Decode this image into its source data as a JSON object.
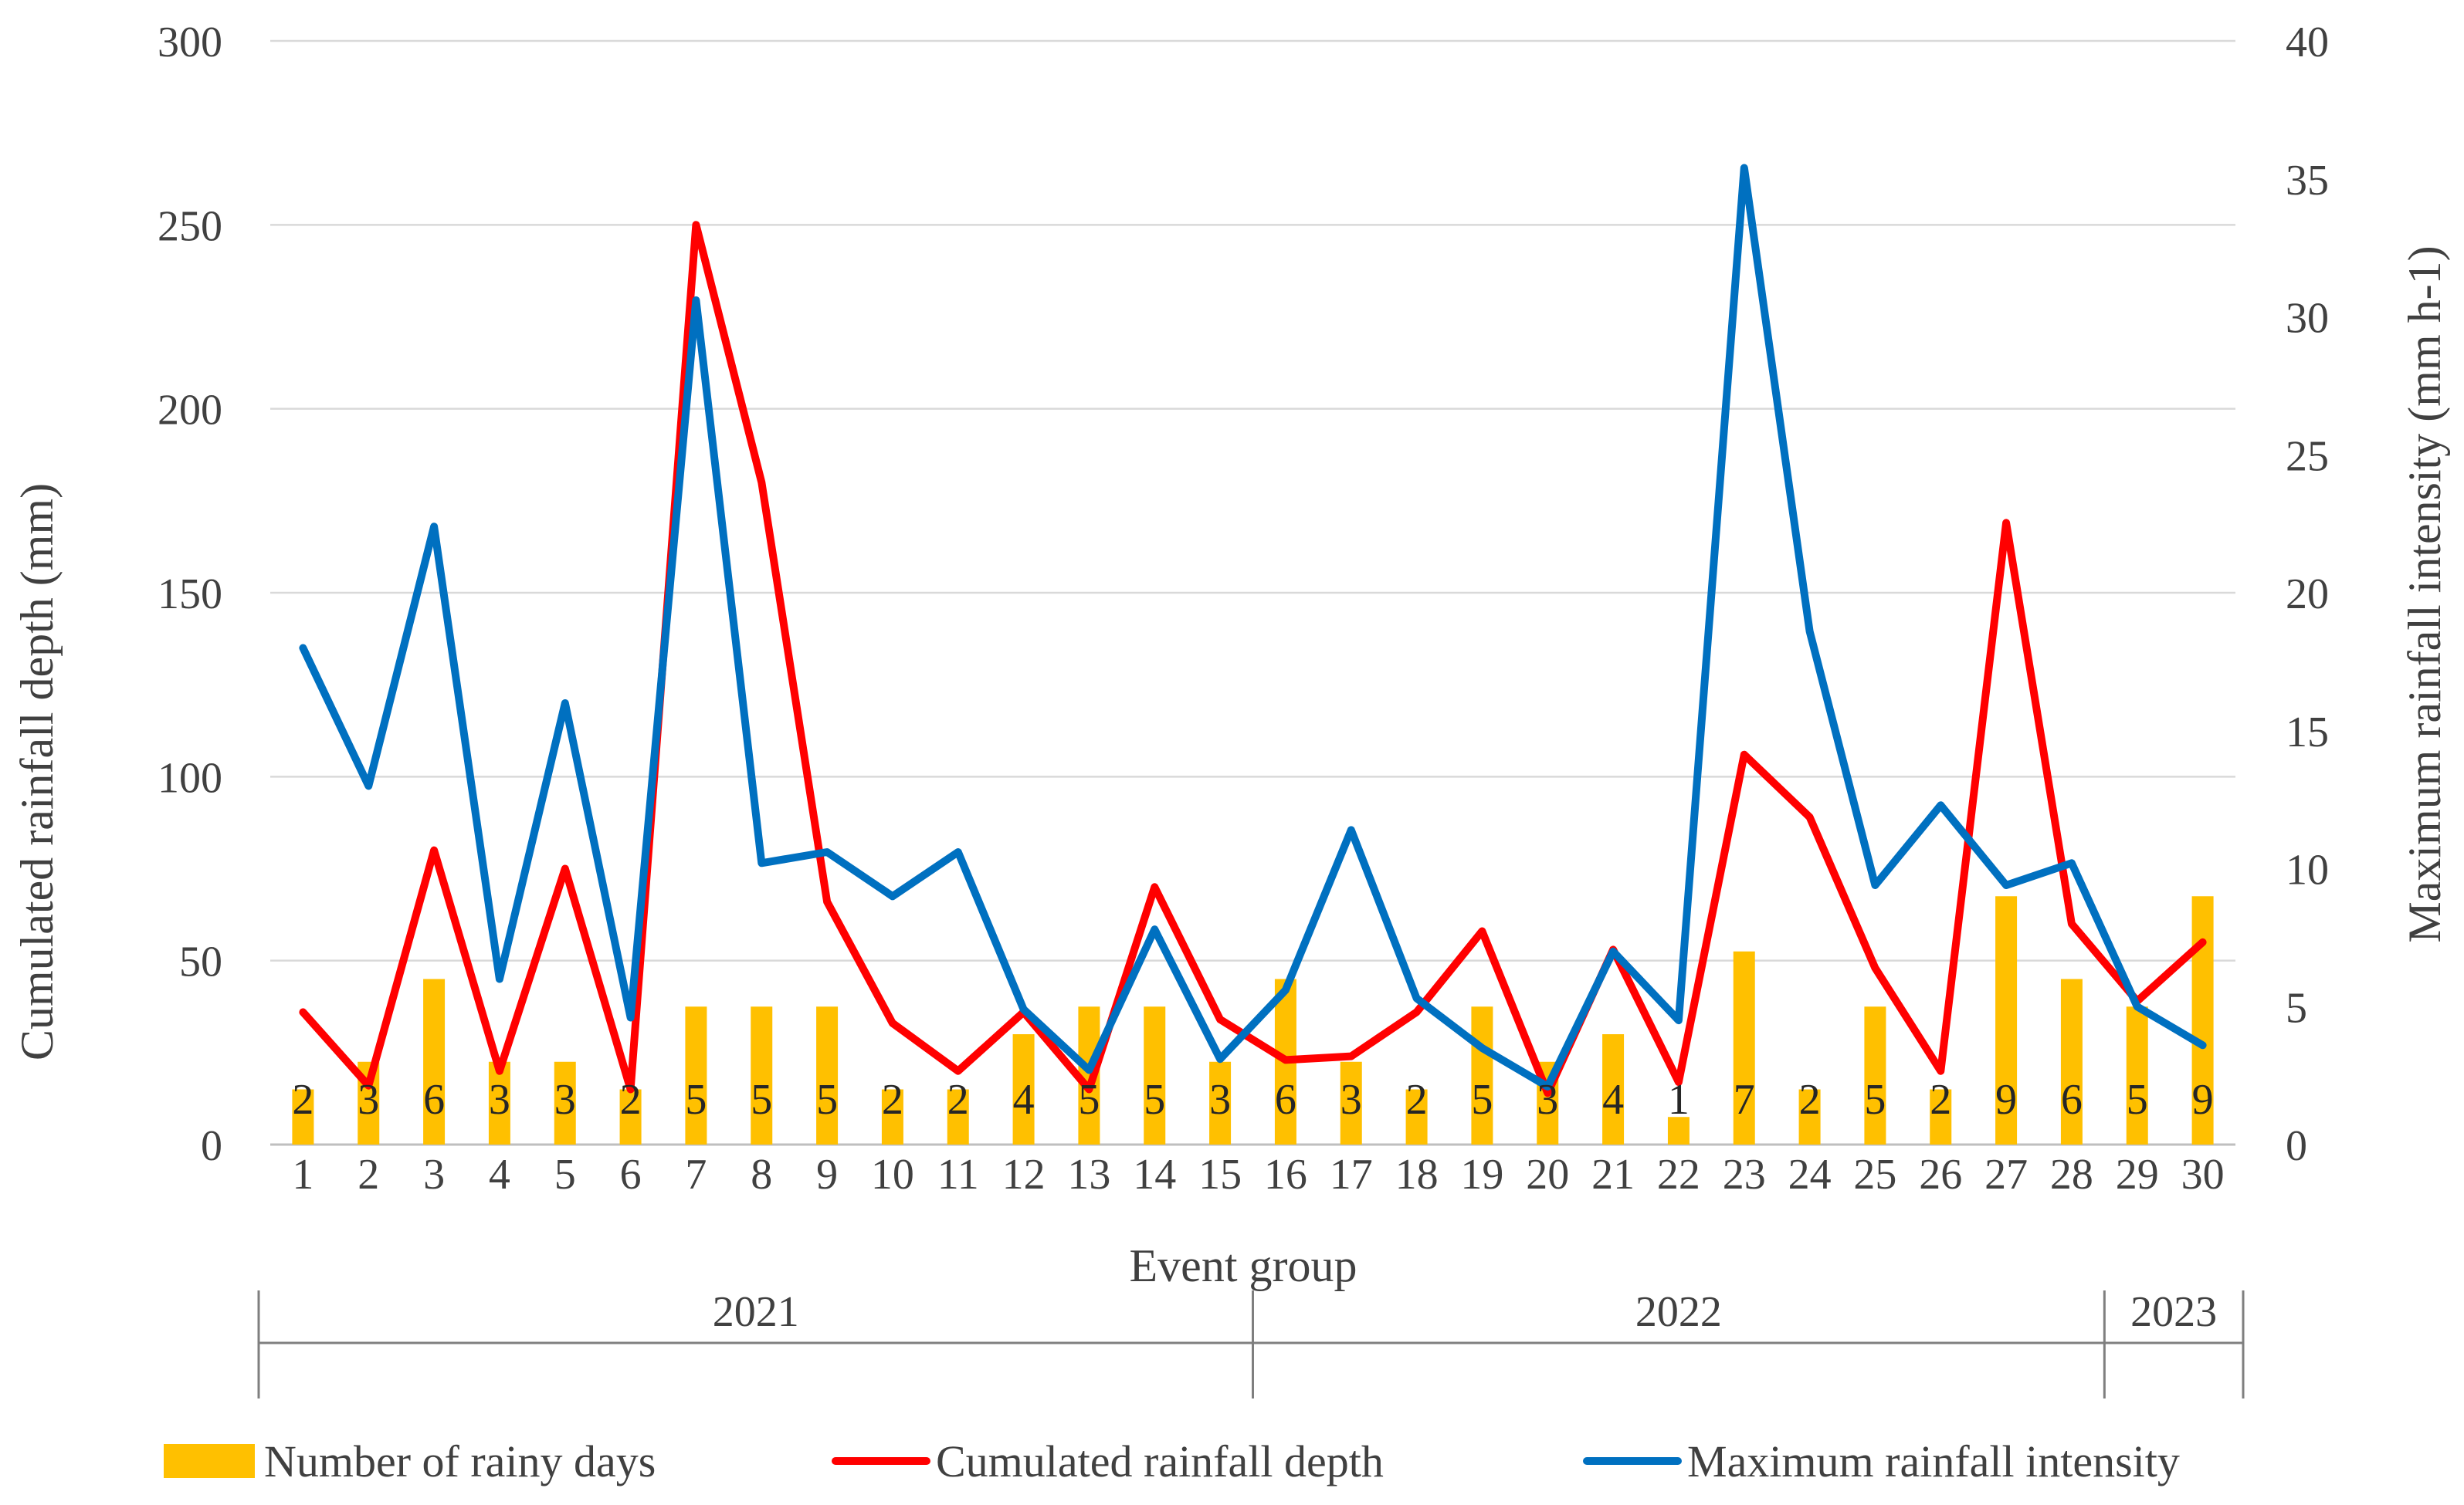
{
  "chart_data": {
    "type": "bar+line",
    "xlabel": "Event group",
    "ylabel_left": "Cumulated rainfall depth (mm)",
    "ylabel_right": "Maximum rainfall intensity (mm h-1)",
    "ylim_left": [
      0,
      300
    ],
    "ylim_right": [
      0,
      40
    ],
    "yticks_left": [
      "0",
      "50",
      "100",
      "150",
      "200",
      "250",
      "300"
    ],
    "yticks_right": [
      "0",
      "5",
      "10",
      "15",
      "20",
      "25",
      "30",
      "35",
      "40"
    ],
    "categories": [
      "1",
      "2",
      "3",
      "4",
      "5",
      "6",
      "7",
      "8",
      "9",
      "10",
      "11",
      "12",
      "13",
      "14",
      "15",
      "16",
      "17",
      "18",
      "19",
      "20",
      "21",
      "22",
      "23",
      "24",
      "25",
      "26",
      "27",
      "28",
      "29",
      "30"
    ],
    "groups": [
      {
        "label": "2021",
        "from": 1,
        "to": 15
      },
      {
        "label": "2022",
        "from": 16,
        "to": 28
      },
      {
        "label": "2023",
        "from": 29,
        "to": 30
      }
    ],
    "series": [
      {
        "name": "Number of rainy days",
        "type": "bar",
        "axis": "left",
        "color": "#FFC000",
        "scale_factor": 7.5,
        "values": [
          2,
          3,
          6,
          3,
          3,
          2,
          5,
          5,
          5,
          2,
          2,
          4,
          5,
          5,
          3,
          6,
          3,
          2,
          5,
          3,
          4,
          1,
          7,
          2,
          5,
          2,
          9,
          6,
          5,
          9
        ],
        "labels": [
          "2",
          "3",
          "6",
          "3",
          "3",
          "2",
          "5",
          "5",
          "5",
          "2",
          "2",
          "4",
          "5",
          "5",
          "3",
          "6",
          "3",
          "2",
          "5",
          "3",
          "4",
          "1",
          "7",
          "2",
          "5",
          "2",
          "9",
          "6",
          "5",
          "9"
        ]
      },
      {
        "name": "Cumulated rainfall depth",
        "type": "line",
        "axis": "left",
        "color": "#FF0000",
        "values": [
          36,
          16,
          80,
          20,
          75,
          15,
          250,
          180,
          66,
          33,
          20,
          36,
          15,
          70,
          34,
          23,
          24,
          36,
          58,
          14,
          53,
          17,
          106,
          89,
          48,
          20,
          169,
          60,
          39,
          55
        ]
      },
      {
        "name": "Maximum rainfall intensity",
        "type": "line",
        "axis": "right",
        "color": "#0070C0",
        "values": [
          18,
          13,
          22.4,
          6,
          16,
          4.6,
          30.6,
          10.2,
          10.6,
          9,
          10.6,
          4.9,
          2.7,
          7.8,
          3.1,
          5.6,
          11.4,
          5.3,
          3.5,
          2.1,
          7,
          4.5,
          35.4,
          18.6,
          9.4,
          12.3,
          9.4,
          10.2,
          5,
          3.6
        ]
      }
    ],
    "legend": [
      "Number of rainy days",
      "Cumulated rainfall depth",
      "Maximum rainfall intensity"
    ],
    "grid": true,
    "legend_position": "bottom"
  }
}
